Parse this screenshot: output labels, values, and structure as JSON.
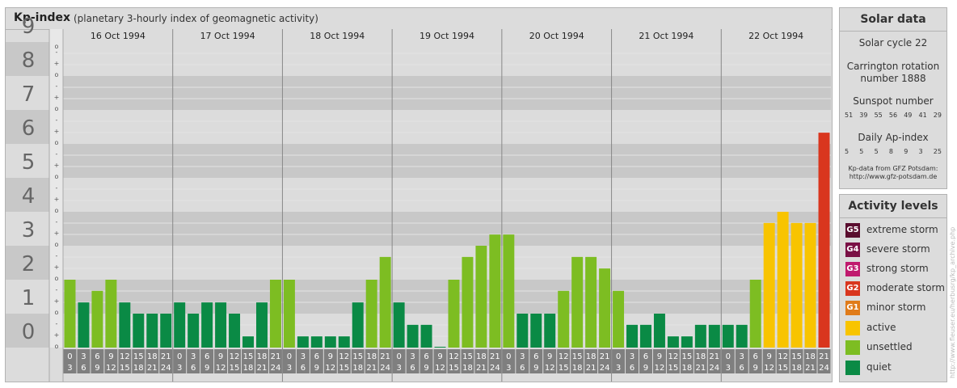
{
  "header": {
    "title": "Kp-index",
    "subtitle": "(planetary 3-hourly index of geomagnetic activity)"
  },
  "solar": {
    "heading": "Solar data",
    "cycle": "Solar cycle 22",
    "carrington_line1": "Carrington rotation",
    "carrington_line2": "number 1888",
    "sunspot_label": "Sunspot number",
    "sunspot_values": [
      "51",
      "39",
      "55",
      "56",
      "49",
      "41",
      "29"
    ],
    "ap_label": "Daily Ap-index",
    "ap_values": [
      "5",
      "5",
      "5",
      "8",
      "9",
      "3",
      "25"
    ],
    "source_line1": "Kp-data from GFZ Potsdam:",
    "source_line2": "http://www.gfz-potsdam.de"
  },
  "levels": {
    "heading": "Activity levels",
    "items": [
      {
        "code": "G5",
        "label": "extreme storm",
        "color": "#5a0d2e"
      },
      {
        "code": "G4",
        "label": "severe storm",
        "color": "#7a1045"
      },
      {
        "code": "G3",
        "label": "strong storm",
        "color": "#c01a6e"
      },
      {
        "code": "G2",
        "label": "moderate storm",
        "color": "#d9361e"
      },
      {
        "code": "G1",
        "label": "minor storm",
        "color": "#e07b1a"
      },
      {
        "code": "",
        "label": "active",
        "color": "#f8c400"
      },
      {
        "code": "",
        "label": "unsettled",
        "color": "#7dbd22"
      },
      {
        "code": "",
        "label": "quiet",
        "color": "#0a8a45"
      }
    ]
  },
  "credit": "http://www.fleuser.eu/herbusrg/kp_archive.php",
  "chart_data": {
    "type": "bar",
    "ylim": [
      0,
      9
    ],
    "y_ticks": [
      "0",
      "1",
      "2",
      "3",
      "4",
      "5",
      "6",
      "7",
      "8",
      "9"
    ],
    "minor_marks": [
      "o",
      "+",
      "-"
    ],
    "days": [
      "16 Oct 1994",
      "17 Oct 1994",
      "18 Oct 1994",
      "19 Oct 1994",
      "20 Oct 1994",
      "21 Oct 1994",
      "22 Oct 1994"
    ],
    "x_ticks_top": [
      "0",
      "3",
      "6",
      "9",
      "12",
      "15",
      "18",
      "21"
    ],
    "x_ticks_bottom": [
      "3",
      "6",
      "9",
      "12",
      "15",
      "18",
      "21",
      "24"
    ],
    "values": [
      [
        2.0,
        1.33,
        1.67,
        2.0,
        1.33,
        1.0,
        1.0,
        1.0
      ],
      [
        1.33,
        1.0,
        1.33,
        1.33,
        1.0,
        0.33,
        1.33,
        2.0
      ],
      [
        2.0,
        0.33,
        0.33,
        0.33,
        0.33,
        1.33,
        2.0,
        2.67
      ],
      [
        1.33,
        0.67,
        0.67,
        0.0,
        2.0,
        2.67,
        3.0,
        3.33
      ],
      [
        3.33,
        1.0,
        1.0,
        1.0,
        1.67,
        2.67,
        2.67,
        2.33
      ],
      [
        1.67,
        0.67,
        0.67,
        1.0,
        0.33,
        0.33,
        0.67,
        0.67
      ],
      [
        0.67,
        0.67,
        2.0,
        3.67,
        4.0,
        3.67,
        3.67,
        6.33
      ]
    ],
    "level_colors": {
      "quiet": "#0a8a45",
      "unsettled": "#7dbd22",
      "active": "#f8c400",
      "moderate": "#d9361e"
    },
    "background_colors": [
      "#c8c8c8",
      "#dcdcdc",
      "#e8e8e8",
      "#7f7f7f"
    ]
  }
}
